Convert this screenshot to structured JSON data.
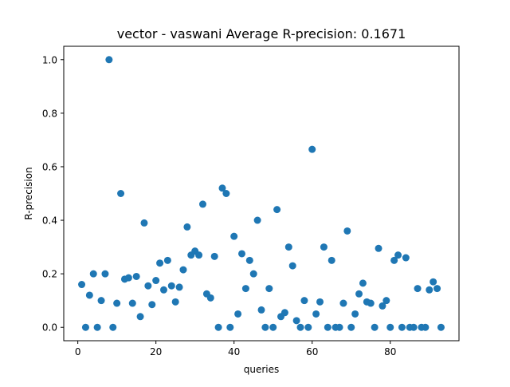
{
  "chart_data": {
    "type": "scatter",
    "title": "vector - vaswani  Average R-precision: 0.1671",
    "xlabel": "queries",
    "ylabel": "R-precision",
    "xlim": [
      -3.6,
      97.6
    ],
    "ylim": [
      -0.05,
      1.05
    ],
    "xticks": [
      0,
      20,
      40,
      60,
      80
    ],
    "xtick_labels": [
      "0",
      "20",
      "40",
      "60",
      "80"
    ],
    "yticks": [
      0.0,
      0.2,
      0.4,
      0.6,
      0.8,
      1.0
    ],
    "ytick_labels": [
      "0.0",
      "0.2",
      "0.4",
      "0.6",
      "0.8",
      "1.0"
    ],
    "grid": false,
    "marker_color": "#1f77b4",
    "series": [
      {
        "x": [
          1,
          2,
          3,
          4,
          5,
          6,
          7,
          8,
          9,
          10,
          11,
          12,
          13,
          14,
          15,
          16,
          17,
          18,
          19,
          20,
          21,
          22,
          23,
          24,
          25,
          26,
          27,
          28,
          29,
          30,
          31,
          32,
          33,
          34,
          35,
          36,
          37,
          38,
          39,
          40,
          41,
          42,
          43,
          44,
          45,
          46,
          47,
          48,
          49,
          50,
          51,
          52,
          53,
          54,
          55,
          56,
          57,
          58,
          59,
          60,
          61,
          62,
          63,
          64,
          65,
          66,
          67,
          68,
          69,
          70,
          71,
          72,
          73,
          74,
          75,
          76,
          77,
          78,
          79,
          80,
          81,
          82,
          83,
          84,
          85,
          86,
          87,
          88,
          89,
          90,
          91,
          92,
          93
        ],
        "values": [
          0.16,
          0.0,
          0.12,
          0.2,
          0.0,
          0.1,
          0.2,
          1.0,
          0.0,
          0.09,
          0.5,
          0.18,
          0.185,
          0.09,
          0.19,
          0.04,
          0.39,
          0.155,
          0.085,
          0.175,
          0.24,
          0.14,
          0.25,
          0.155,
          0.095,
          0.15,
          0.215,
          0.375,
          0.27,
          0.285,
          0.27,
          0.46,
          0.125,
          0.11,
          0.265,
          0.0,
          0.52,
          0.5,
          0.0,
          0.34,
          0.05,
          0.275,
          0.145,
          0.25,
          0.2,
          0.4,
          0.065,
          0.0,
          0.145,
          0.0,
          0.44,
          0.04,
          0.055,
          0.3,
          0.23,
          0.025,
          0.0,
          0.1,
          0.0,
          0.665,
          0.05,
          0.095,
          0.3,
          0.0,
          0.25,
          0.0,
          0.0,
          0.09,
          0.36,
          0.0,
          0.05,
          0.125,
          0.165,
          0.095,
          0.09,
          0.0,
          0.295,
          0.08,
          0.1,
          0.0,
          0.25,
          0.27,
          0.0,
          0.26,
          0.0,
          0.0,
          0.145,
          0.0,
          0.0,
          0.14,
          0.17,
          0.145,
          0.0
        ]
      }
    ]
  }
}
